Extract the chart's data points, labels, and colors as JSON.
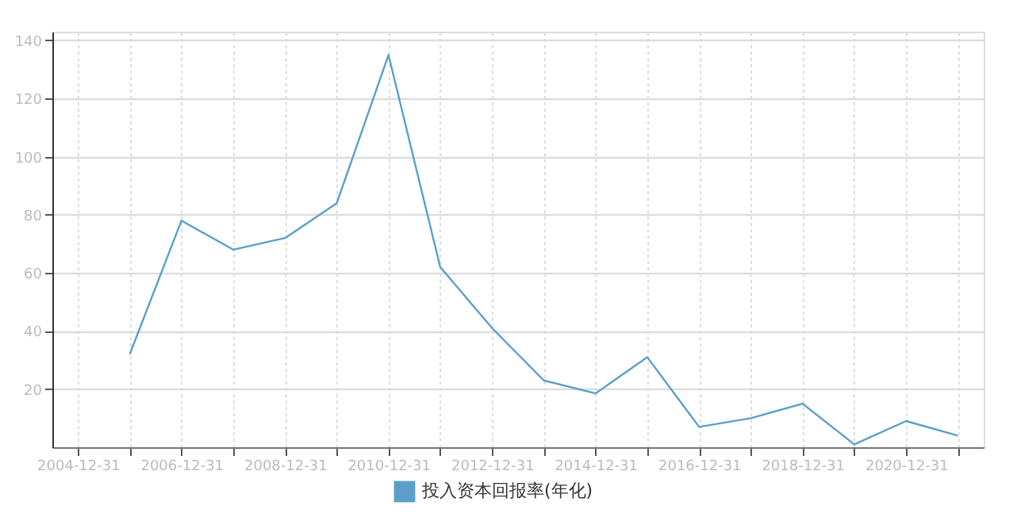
{
  "chart_data": {
    "type": "line",
    "x": [
      "2005-12-31",
      "2006-12-31",
      "2007-12-31",
      "2008-12-31",
      "2009-12-31",
      "2010-12-31",
      "2011-12-31",
      "2012-12-31",
      "2013-12-31",
      "2014-12-31",
      "2015-12-31",
      "2016-12-31",
      "2017-12-31",
      "2018-12-31",
      "2019-12-31",
      "2020-12-31",
      "2021-12-31"
    ],
    "series": [
      {
        "name": "投入资本回报率(年化)",
        "color": "#5b9fc8",
        "values": [
          32,
          78,
          68,
          72,
          84,
          135,
          62,
          41,
          23,
          18.5,
          31,
          7,
          10,
          15,
          1,
          9,
          4
        ]
      }
    ],
    "xlim": [
      "2004-07-03",
      "2022-07-01"
    ],
    "xticks": [
      {
        "value": "2004-12-31",
        "label": "2004-12-31"
      },
      {
        "value": "2005-12-31",
        "label": null
      },
      {
        "value": "2006-12-31",
        "label": "2006-12-31"
      },
      {
        "value": "2007-12-31",
        "label": null
      },
      {
        "value": "2008-12-31",
        "label": "2008-12-31"
      },
      {
        "value": "2009-12-31",
        "label": null
      },
      {
        "value": "2010-12-31",
        "label": "2010-12-31"
      },
      {
        "value": "2011-12-31",
        "label": null
      },
      {
        "value": "2012-12-31",
        "label": "2012-12-31"
      },
      {
        "value": "2013-12-31",
        "label": null
      },
      {
        "value": "2014-12-31",
        "label": "2014-12-31"
      },
      {
        "value": "2015-12-31",
        "label": null
      },
      {
        "value": "2016-12-31",
        "label": "2016-12-31"
      },
      {
        "value": "2017-12-31",
        "label": null
      },
      {
        "value": "2018-12-31",
        "label": "2018-12-31"
      },
      {
        "value": "2019-12-31",
        "label": null
      },
      {
        "value": "2020-12-31",
        "label": "2020-12-31"
      },
      {
        "value": "2021-12-31",
        "label": null
      }
    ],
    "ylim": [
      0,
      143
    ],
    "yticks": [
      20,
      40,
      60,
      80,
      100,
      120,
      140
    ],
    "grid": true,
    "legend": "bottom",
    "marker": "none",
    "line_style": "solid"
  }
}
